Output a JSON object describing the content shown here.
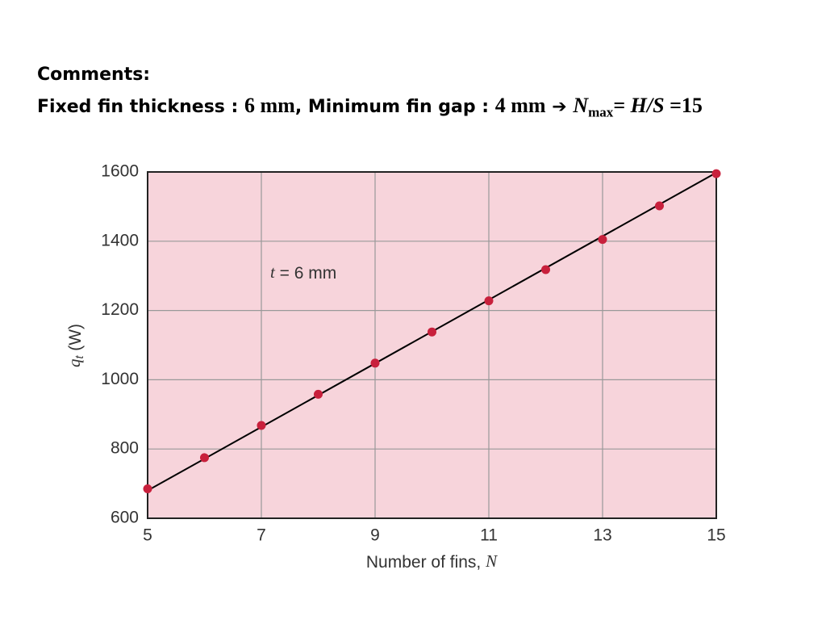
{
  "header": {
    "title": "Comments:",
    "subtitle": [
      "Fixed fin thickness : ",
      "6 mm",
      ", Minimum fin gap : ",
      "4 mm",
      "➔",
      "N",
      "max",
      "= ",
      "H/S",
      " =15"
    ]
  },
  "chart_data": {
    "type": "scatter",
    "x": [
      5,
      6,
      7,
      8,
      9,
      10,
      11,
      12,
      13,
      14,
      15
    ],
    "values": [
      685,
      775,
      868,
      958,
      1048,
      1138,
      1228,
      1318,
      1405,
      1502,
      1595
    ],
    "color": "#c8203c",
    "fit": {
      "x": [
        5,
        15
      ],
      "values": [
        680,
        1598
      ],
      "color": "#000000"
    },
    "annotation": [
      "t",
      " = 6 mm"
    ],
    "xlabel": [
      "Number of fins, ",
      "N"
    ],
    "ylabel": [
      "q",
      "t",
      " (W)"
    ],
    "xlim": [
      5,
      15
    ],
    "xticks": [
      5,
      7,
      9,
      11,
      13,
      15
    ],
    "ylim": [
      600,
      1600
    ],
    "yticks": [
      600,
      800,
      1000,
      1200,
      1400,
      1600
    ],
    "grid": true
  }
}
